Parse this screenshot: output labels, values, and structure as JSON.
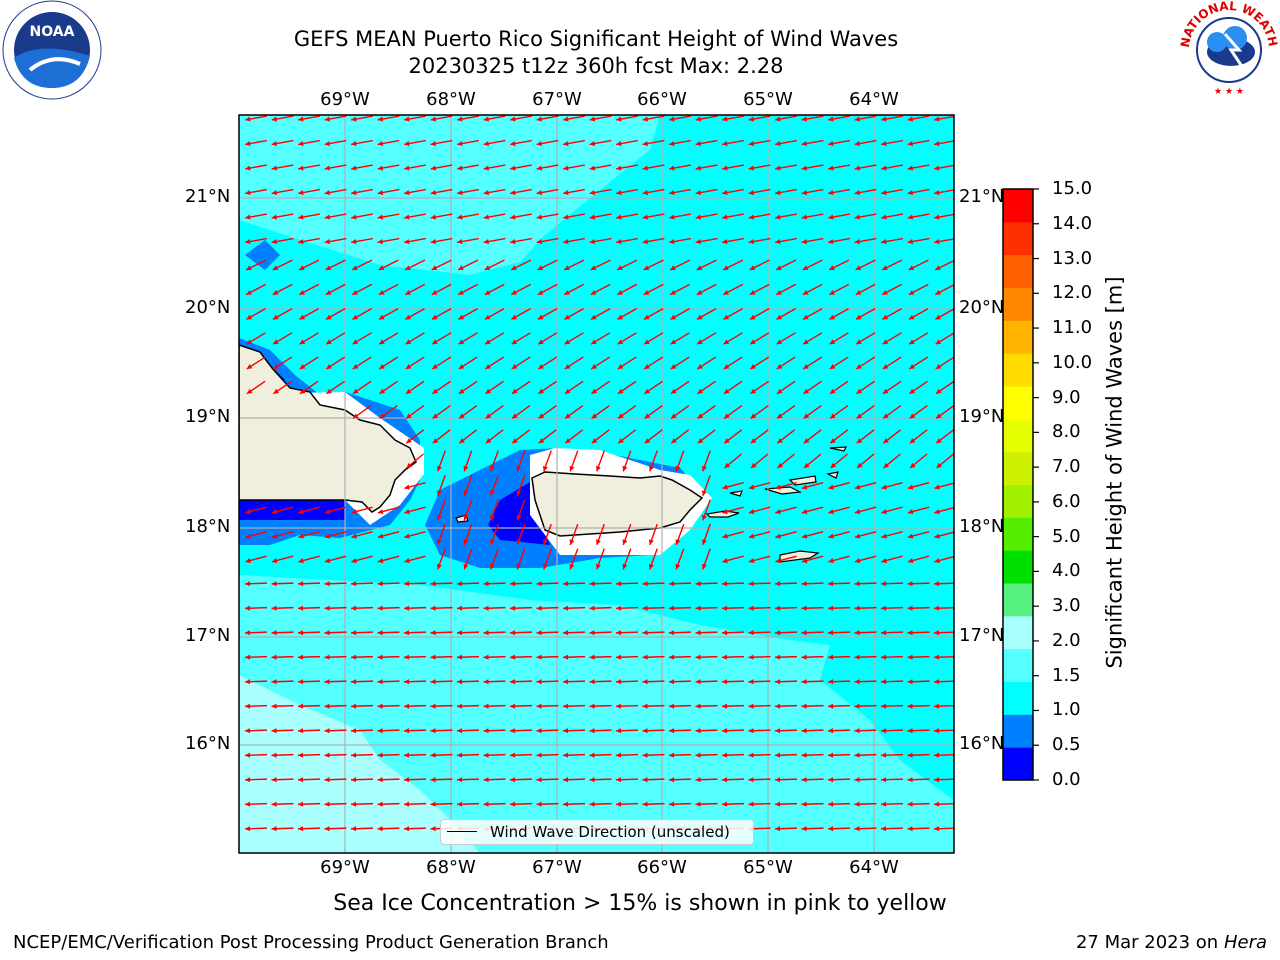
{
  "title_line1": "GEFS MEAN Puerto Rico Significant Height of Wind Waves",
  "title_line2": "20230325 t12z 360h fcst   Max: 2.28",
  "lon_labels": [
    "69°W",
    "68°W",
    "67°W",
    "66°W",
    "65°W",
    "64°W"
  ],
  "lat_labels": [
    "21°N",
    "20°N",
    "19°N",
    "18°N",
    "17°N",
    "16°N"
  ],
  "colorbar": {
    "title": "Significant Height of Wind Waves [m]",
    "ticks": [
      "15.0",
      "14.0",
      "13.0",
      "12.0",
      "11.0",
      "10.0",
      "9.0",
      "8.0",
      "7.0",
      "6.0",
      "5.0",
      "4.0",
      "3.0",
      "2.0",
      "1.5",
      "1.0",
      "0.5",
      "0.0"
    ],
    "colors": [
      "#0000ff",
      "#0080ff",
      "#00ffff",
      "#54ffff",
      "#aaffff",
      "#55f080",
      "#00e000",
      "#55ee00",
      "#a0f000",
      "#cdf000",
      "#e6ff00",
      "#ffff00",
      "#ffdc00",
      "#ffb400",
      "#ff8800",
      "#ff6000",
      "#ff3000",
      "#ff0000"
    ]
  },
  "legend": {
    "label": "Wind Wave Direction (unscaled)"
  },
  "colors": {
    "land": "#f0eedc",
    "arrows": "#ff0000",
    "grid": "#b0b0b0"
  },
  "caption": "Sea Ice Concentration > 15% is shown in pink to yellow",
  "footer_left": "NCEP/EMC/Verification Post Processing Product Generation Branch",
  "footer_right_prefix": "27 Mar 2023 on",
  "footer_right_host": "Hera",
  "logos": {
    "noaa": "NOAA",
    "nws": "NATIONAL WEATHER SERVICE"
  }
}
